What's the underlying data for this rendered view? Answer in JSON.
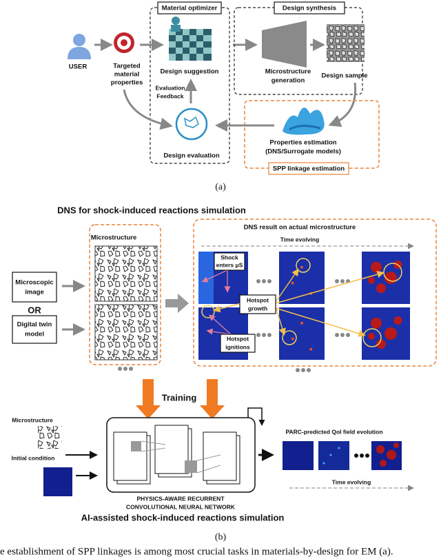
{
  "figure_a": {
    "user": "USER",
    "targeted": [
      "Targeted",
      "material",
      "properties"
    ],
    "optimizer": {
      "title": "Material optimizer",
      "suggestion": "Design suggestion",
      "feedback": [
        "Evaluation",
        "Feedback"
      ],
      "evaluation": "Design evaluation"
    },
    "synthesis": {
      "title": "Design synthesis",
      "generation": [
        "Microstructure",
        "generation"
      ],
      "sample": "Design sample"
    },
    "properties": [
      "Properties estimation",
      "(DNS/Surrogate models)"
    ],
    "linkage": "SPP linkage estimation",
    "label": "(a)"
  },
  "figure_b": {
    "dns_title": "DNS for shock-induced reactions simulation",
    "microscopic": [
      "Microscopic",
      "image"
    ],
    "or": "OR",
    "digital_twin": [
      "Digital twin",
      "model"
    ],
    "microstructure": "Microstructure",
    "dns_result": "DNS result on actual microstructure",
    "time_evolving": "Time evolving",
    "shock": [
      "Shock",
      "enters μS"
    ],
    "growth": [
      "Hotspot",
      "growth"
    ],
    "ignitions": [
      "Hotspot",
      "ignitions"
    ],
    "training": "Training",
    "bottom_microstructure": "Microstructure",
    "initial_condition": "Initial condition",
    "network": [
      "PHYSICS-AWARE RECURRENT",
      "CONVOLUTIONAL NEURAL NETWORK"
    ],
    "ai_title": "AI-assisted shock-induced reactions simulation",
    "parc": "PARC-predicted QoI field evolution",
    "time_evolving_2": "Time evolving",
    "label": "(b)"
  },
  "caption": "e establishment of SPP linkages is among most crucial tasks in materials-by-design for EM (a)."
}
